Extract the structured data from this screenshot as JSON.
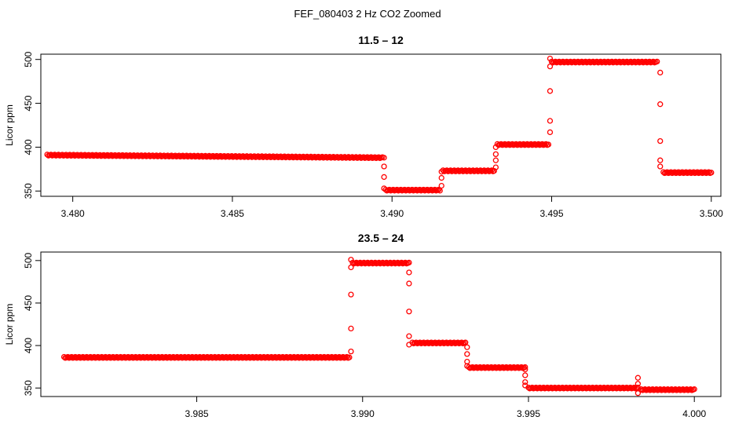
{
  "figure_title": "FEF_080403  2 Hz CO2 Zoomed",
  "chart_data": [
    {
      "type": "scatter",
      "title": "11.5 – 12",
      "xlabel": "",
      "ylabel": "Licor ppm",
      "xlim": [
        3.479,
        3.5003
      ],
      "ylim": [
        344,
        506
      ],
      "xticks": [
        3.48,
        3.485,
        3.49,
        3.495,
        3.5
      ],
      "xtick_labels": [
        "3.480",
        "3.485",
        "3.490",
        "3.495",
        "3.500"
      ],
      "yticks": [
        350,
        400,
        450,
        500
      ],
      "ytick_labels": [
        "350",
        "400",
        "450",
        "500"
      ],
      "marker": "open-circle",
      "color": "#ff0000",
      "steps": [
        {
          "x": [
            3.4792,
            3.4897
          ],
          "y": [
            391,
            388
          ]
        },
        {
          "x": [
            3.4898,
            3.4915
          ],
          "y": [
            351,
            351
          ]
        },
        {
          "x": [
            3.4916,
            3.4932
          ],
          "y": [
            373,
            373
          ]
        },
        {
          "x": [
            3.4933,
            3.4949
          ],
          "y": [
            403,
            403
          ]
        },
        {
          "x": [
            3.495,
            3.4983
          ],
          "y": [
            497,
            497
          ]
        },
        {
          "x": [
            3.4985,
            3.5
          ],
          "y": [
            371,
            371
          ]
        }
      ],
      "transitions": [
        {
          "x": 3.48975,
          "y": [
            388,
            378,
            366,
            353
          ]
        },
        {
          "x": 3.49155,
          "y": [
            356,
            365,
            372
          ]
        },
        {
          "x": 3.49325,
          "y": [
            377,
            385,
            392,
            400
          ]
        },
        {
          "x": 3.49495,
          "y": [
            417,
            430,
            464,
            492,
            501
          ]
        },
        {
          "x": 3.4984,
          "y": [
            485,
            449,
            407,
            385,
            378
          ]
        }
      ]
    },
    {
      "type": "scatter",
      "title": "23.5 – 24",
      "xlabel": "",
      "ylabel": "Licor ppm",
      "xlim": [
        3.9803,
        4.0008
      ],
      "ylim": [
        340,
        510
      ],
      "xticks": [
        3.985,
        3.99,
        3.995,
        4.0
      ],
      "xtick_labels": [
        "3.985",
        "3.990",
        "3.995",
        "4.000"
      ],
      "yticks": [
        350,
        400,
        450,
        500
      ],
      "ytick_labels": [
        "350",
        "400",
        "450",
        "500"
      ],
      "marker": "open-circle",
      "color": "#ff0000",
      "steps": [
        {
          "x": [
            3.981,
            3.9896
          ],
          "y": [
            386,
            386
          ]
        },
        {
          "x": [
            3.9897,
            3.9914
          ],
          "y": [
            497,
            497
          ]
        },
        {
          "x": [
            3.9915,
            3.9931
          ],
          "y": [
            403,
            403
          ]
        },
        {
          "x": [
            3.9932,
            3.9949
          ],
          "y": [
            374,
            374
          ]
        },
        {
          "x": [
            3.995,
            3.9983
          ],
          "y": [
            350,
            350
          ]
        },
        {
          "x": [
            3.9984,
            4.0
          ],
          "y": [
            348,
            348
          ]
        }
      ],
      "transitions": [
        {
          "x": 3.98965,
          "y": [
            393,
            420,
            460,
            492,
            501
          ]
        },
        {
          "x": 3.9914,
          "y": [
            486,
            473,
            440,
            411,
            401
          ]
        },
        {
          "x": 3.99315,
          "y": [
            398,
            390,
            381,
            376
          ]
        },
        {
          "x": 3.9949,
          "y": [
            372,
            365,
            357,
            353
          ]
        },
        {
          "x": 3.9983,
          "y": [
            344,
            362,
            355
          ]
        }
      ]
    }
  ]
}
